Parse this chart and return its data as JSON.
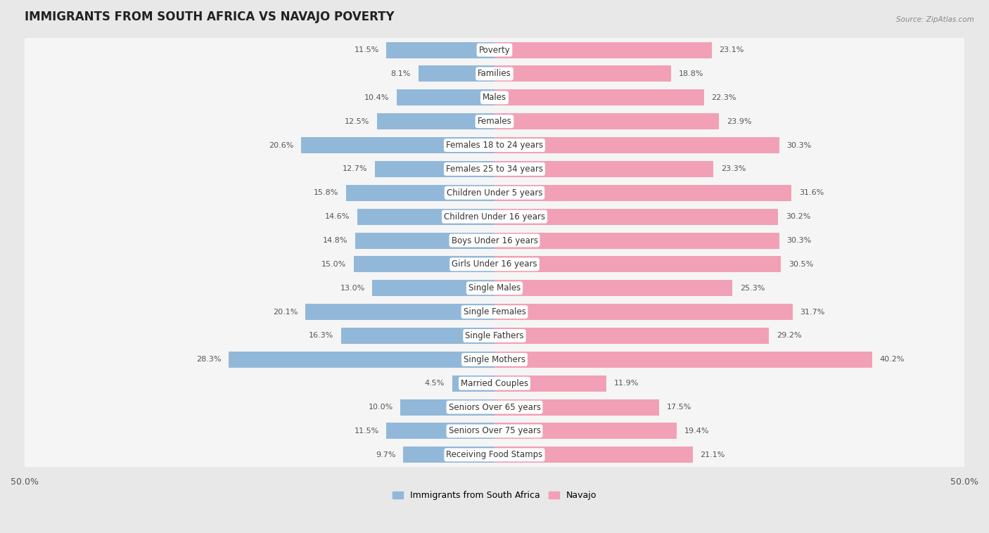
{
  "title": "IMMIGRANTS FROM SOUTH AFRICA VS NAVAJO POVERTY",
  "source": "Source: ZipAtlas.com",
  "categories": [
    "Poverty",
    "Families",
    "Males",
    "Females",
    "Females 18 to 24 years",
    "Females 25 to 34 years",
    "Children Under 5 years",
    "Children Under 16 years",
    "Boys Under 16 years",
    "Girls Under 16 years",
    "Single Males",
    "Single Females",
    "Single Fathers",
    "Single Mothers",
    "Married Couples",
    "Seniors Over 65 years",
    "Seniors Over 75 years",
    "Receiving Food Stamps"
  ],
  "left_values": [
    11.5,
    8.1,
    10.4,
    12.5,
    20.6,
    12.7,
    15.8,
    14.6,
    14.8,
    15.0,
    13.0,
    20.1,
    16.3,
    28.3,
    4.5,
    10.0,
    11.5,
    9.7
  ],
  "right_values": [
    23.1,
    18.8,
    22.3,
    23.9,
    30.3,
    23.3,
    31.6,
    30.2,
    30.3,
    30.5,
    25.3,
    31.7,
    29.2,
    40.2,
    11.9,
    17.5,
    19.4,
    21.1
  ],
  "left_color": "#92b8d9",
  "right_color": "#f2a0b5",
  "axis_limit": 50.0,
  "legend_left": "Immigrants from South Africa",
  "legend_right": "Navajo",
  "background_color": "#e8e8e8",
  "row_color": "#f5f5f5",
  "title_fontsize": 12,
  "label_fontsize": 8.5,
  "value_fontsize": 8
}
